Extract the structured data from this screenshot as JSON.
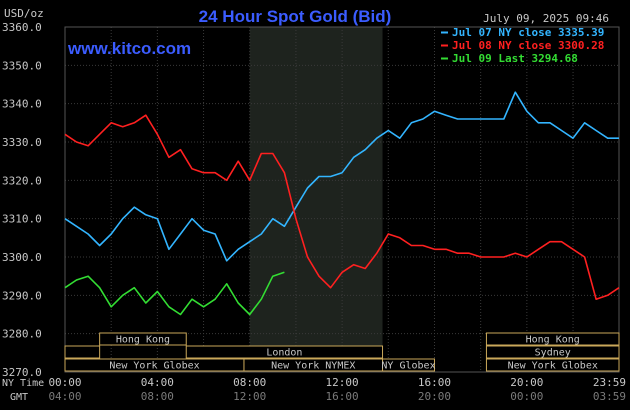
{
  "chart_data": {
    "type": "line",
    "title": "24 Hour Spot Gold (Bid)",
    "website": "www.kitco.com",
    "unit_label": "USD/oz",
    "timestamp": "July 09, 2025 09:46",
    "ylim": [
      3270,
      3360
    ],
    "y_ticks": [
      "3360.0",
      "3350.0",
      "3340.0",
      "3330.0",
      "3320.0",
      "3310.0",
      "3300.0",
      "3290.0",
      "3280.0",
      "3270.0"
    ],
    "x_row_labels": {
      "primary": "NY Time",
      "secondary": "GMT"
    },
    "x_ticks_ny": [
      "00:00",
      "04:00",
      "08:00",
      "12:00",
      "16:00",
      "20:00",
      "23:59"
    ],
    "x_ticks_gmt": [
      "04:00",
      "08:00",
      "12:00",
      "16:00",
      "20:00",
      "00:00",
      "03:59"
    ],
    "grid": true,
    "legend_position": "top-right",
    "colors": {
      "background": "#000000",
      "grid": "#3a3a3a",
      "title": "#3b5cff",
      "website": "#3b5cff",
      "text": "#c8c8c8",
      "shade": "#1e231e",
      "market_box_border": "#caa85a"
    },
    "series": [
      {
        "name": "Jul 07 NY close 3335.39",
        "color": "#33b5ff",
        "points": [
          [
            0,
            3310
          ],
          [
            0.5,
            3308
          ],
          [
            1,
            3306
          ],
          [
            1.5,
            3303
          ],
          [
            2,
            3306
          ],
          [
            2.5,
            3310
          ],
          [
            3,
            3313
          ],
          [
            3.5,
            3311
          ],
          [
            4,
            3310
          ],
          [
            4.5,
            3302
          ],
          [
            5,
            3306
          ],
          [
            5.5,
            3310
          ],
          [
            6,
            3307
          ],
          [
            6.5,
            3306
          ],
          [
            7,
            3299
          ],
          [
            7.5,
            3302
          ],
          [
            8,
            3304
          ],
          [
            8.5,
            3306
          ],
          [
            9,
            3310
          ],
          [
            9.5,
            3308
          ],
          [
            10,
            3313
          ],
          [
            10.5,
            3318
          ],
          [
            11,
            3321
          ],
          [
            11.5,
            3321
          ],
          [
            12,
            3322
          ],
          [
            12.5,
            3326
          ],
          [
            13,
            3328
          ],
          [
            13.5,
            3331
          ],
          [
            14,
            3333
          ],
          [
            14.5,
            3331
          ],
          [
            15,
            3335
          ],
          [
            15.5,
            3336
          ],
          [
            16,
            3338
          ],
          [
            16.5,
            3337
          ],
          [
            17,
            3336
          ],
          [
            17.5,
            3336
          ],
          [
            18,
            3336
          ],
          [
            18.5,
            3336
          ],
          [
            19,
            3336
          ],
          [
            19.5,
            3343
          ],
          [
            20,
            3338
          ],
          [
            20.5,
            3335
          ],
          [
            21,
            3335
          ],
          [
            21.5,
            3333
          ],
          [
            22,
            3331
          ],
          [
            22.5,
            3335
          ],
          [
            23,
            3333
          ],
          [
            23.5,
            3331
          ],
          [
            23.99,
            3331
          ]
        ]
      },
      {
        "name": "Jul 08 NY close 3300.28",
        "color": "#ff2020",
        "points": [
          [
            0,
            3332
          ],
          [
            0.5,
            3330
          ],
          [
            1,
            3329
          ],
          [
            1.5,
            3332
          ],
          [
            2,
            3335
          ],
          [
            2.5,
            3334
          ],
          [
            3,
            3335
          ],
          [
            3.5,
            3337
          ],
          [
            4,
            3332
          ],
          [
            4.5,
            3326
          ],
          [
            5,
            3328
          ],
          [
            5.5,
            3323
          ],
          [
            6,
            3322
          ],
          [
            6.5,
            3322
          ],
          [
            7,
            3320
          ],
          [
            7.5,
            3325
          ],
          [
            8,
            3320
          ],
          [
            8.5,
            3327
          ],
          [
            9,
            3327
          ],
          [
            9.5,
            3322
          ],
          [
            10,
            3310
          ],
          [
            10.5,
            3300
          ],
          [
            11,
            3295
          ],
          [
            11.5,
            3292
          ],
          [
            12,
            3296
          ],
          [
            12.5,
            3298
          ],
          [
            13,
            3297
          ],
          [
            13.5,
            3301
          ],
          [
            14,
            3306
          ],
          [
            14.5,
            3305
          ],
          [
            15,
            3303
          ],
          [
            15.5,
            3303
          ],
          [
            16,
            3302
          ],
          [
            16.5,
            3302
          ],
          [
            17,
            3301
          ],
          [
            17.5,
            3301
          ],
          [
            18,
            3300
          ],
          [
            18.5,
            3300
          ],
          [
            19,
            3300
          ],
          [
            19.5,
            3301
          ],
          [
            20,
            3300
          ],
          [
            20.5,
            3302
          ],
          [
            21,
            3304
          ],
          [
            21.5,
            3304
          ],
          [
            22,
            3302
          ],
          [
            22.5,
            3300
          ],
          [
            23,
            3289
          ],
          [
            23.5,
            3290
          ],
          [
            23.99,
            3292
          ]
        ]
      },
      {
        "name": "Jul 09 Last 3294.68",
        "color": "#33dd33",
        "points": [
          [
            0,
            3292
          ],
          [
            0.5,
            3294
          ],
          [
            1,
            3295
          ],
          [
            1.5,
            3292
          ],
          [
            2,
            3287
          ],
          [
            2.5,
            3290
          ],
          [
            3,
            3292
          ],
          [
            3.5,
            3288
          ],
          [
            4,
            3291
          ],
          [
            4.5,
            3287
          ],
          [
            5,
            3285
          ],
          [
            5.5,
            3289
          ],
          [
            6,
            3287
          ],
          [
            6.5,
            3289
          ],
          [
            7,
            3293
          ],
          [
            7.5,
            3288
          ],
          [
            8,
            3285
          ],
          [
            8.5,
            3289
          ],
          [
            9,
            3295
          ],
          [
            9.5,
            3296
          ]
        ]
      }
    ],
    "market_sessions": [
      {
        "label": "Hong Kong",
        "row": 0,
        "start": 1.5,
        "end": 5.25
      },
      {
        "label": "Hong Kong",
        "row": 0,
        "start": 18.25,
        "end": 23.99
      },
      {
        "label": "",
        "row": 1,
        "start": 0,
        "end": 1.5
      },
      {
        "label": "London",
        "row": 1,
        "start": 5.25,
        "end": 13.75
      },
      {
        "label": "Sydney",
        "row": 1,
        "start": 18.25,
        "end": 23.99
      },
      {
        "label": "New York Globex",
        "row": 2,
        "start": 0,
        "end": 7.75
      },
      {
        "label": "New York NYMEX",
        "row": 2,
        "start": 7.75,
        "end": 13.75
      },
      {
        "label": "NY Globex",
        "row": 2,
        "start": 13.75,
        "end": 16.0
      },
      {
        "label": "New York Globex",
        "row": 2,
        "start": 18.25,
        "end": 23.99
      }
    ],
    "shaded_region": {
      "start": 8.0,
      "end": 13.75
    }
  }
}
